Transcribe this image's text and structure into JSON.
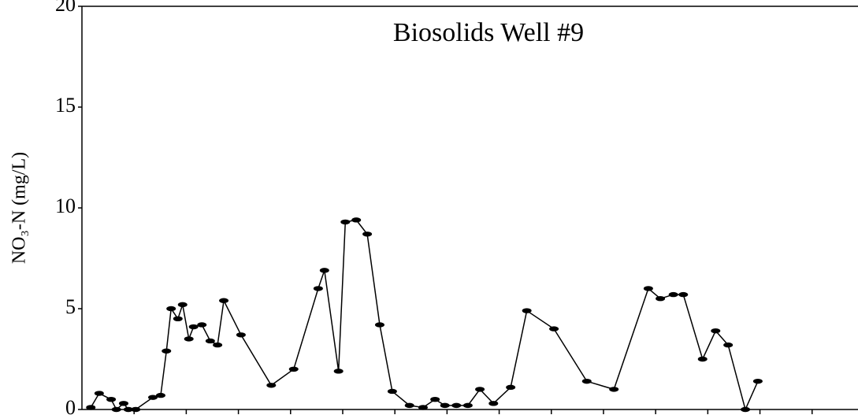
{
  "chart_data": {
    "type": "line",
    "title": "Biosolids Well #9",
    "y_label": "NO₃-N (mg/L)",
    "color": "#000000",
    "x": [
      0.17,
      0.33,
      0.56,
      0.66,
      0.8,
      0.89,
      1.03,
      1.36,
      1.51,
      1.62,
      1.71,
      1.84,
      1.93,
      2.05,
      2.14,
      2.3,
      2.46,
      2.6,
      2.72,
      3.05,
      3.63,
      4.06,
      4.53,
      4.65,
      4.92,
      5.05,
      5.26,
      5.47,
      5.71,
      5.95,
      6.28,
      6.54,
      6.77,
      6.96,
      7.18,
      7.4,
      7.63,
      7.89,
      8.22,
      8.53,
      9.05,
      9.68,
      10.2,
      10.86,
      11.09,
      11.34,
      11.53,
      11.9,
      12.15,
      12.39,
      12.72,
      12.96
    ],
    "values": [
      0.1,
      0.8,
      0.5,
      0.0,
      0.3,
      0,
      0,
      0.6,
      0.7,
      2.9,
      5.0,
      4.5,
      5.2,
      3.5,
      4.1,
      4.2,
      3.4,
      3.2,
      5.4,
      3.7,
      1.2,
      2.0,
      6.0,
      6.9,
      1.9,
      9.3,
      9.4,
      8.7,
      4.2,
      0.9,
      0.2,
      0.1,
      0.5,
      0.2,
      0.2,
      0.2,
      1.0,
      0.3,
      1.1,
      4.9,
      4.0,
      1.4,
      1.0,
      6.0,
      5.5,
      5.7,
      5.7,
      2.5,
      3.9,
      3.2,
      0,
      1.4
    ],
    "xlim": [
      0,
      14.88
    ],
    "xticks": [
      1,
      2,
      3,
      4,
      5,
      6,
      7,
      8,
      9,
      10,
      11,
      12,
      13,
      14
    ],
    "ylim": [
      0,
      20
    ],
    "yticks": [
      0,
      5,
      10,
      15,
      20
    ]
  }
}
